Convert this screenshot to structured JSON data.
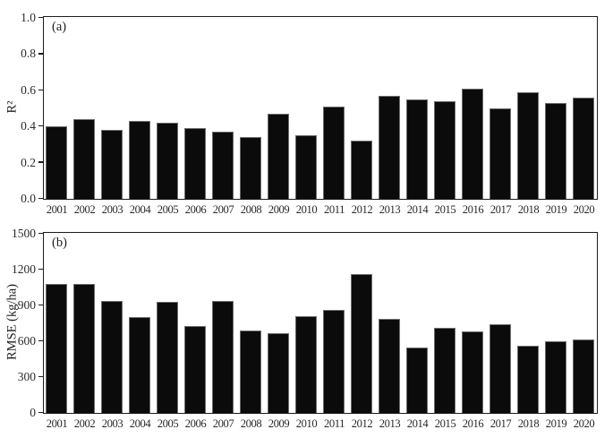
{
  "figure": {
    "background_color": "#ffffff",
    "bar_color": "#0b0b0b",
    "axis_color": "#1c1c1c"
  },
  "chart_data": [
    {
      "type": "bar",
      "panel_label": "(a)",
      "title": "",
      "xlabel": "",
      "ylabel": "R²",
      "legend": "none",
      "grid": false,
      "categories": [
        "2001",
        "2002",
        "2003",
        "2004",
        "2005",
        "2006",
        "2007",
        "2008",
        "2009",
        "2010",
        "2011",
        "2012",
        "2013",
        "2014",
        "2015",
        "2016",
        "2017",
        "2018",
        "2019",
        "2020"
      ],
      "values": [
        0.4,
        0.44,
        0.38,
        0.43,
        0.42,
        0.39,
        0.37,
        0.34,
        0.47,
        0.35,
        0.51,
        0.32,
        0.57,
        0.55,
        0.54,
        0.61,
        0.5,
        0.59,
        0.53,
        0.56
      ],
      "ylim": [
        0,
        1.0
      ],
      "yticks": [
        0.0,
        0.2,
        0.4,
        0.6,
        0.8,
        1.0
      ],
      "ytick_labels": [
        "0.0",
        "0.2",
        "0.4",
        "0.6",
        "0.8",
        "1.0"
      ]
    },
    {
      "type": "bar",
      "panel_label": "(b)",
      "title": "",
      "xlabel": "",
      "ylabel": "RMSE (kg/ha)",
      "legend": "none",
      "grid": false,
      "categories": [
        "2001",
        "2002",
        "2003",
        "2004",
        "2005",
        "2006",
        "2007",
        "2008",
        "2009",
        "2010",
        "2011",
        "2012",
        "2013",
        "2014",
        "2015",
        "2016",
        "2017",
        "2018",
        "2019",
        "2020"
      ],
      "values": [
        1080,
        1080,
        940,
        800,
        930,
        730,
        940,
        690,
        670,
        810,
        860,
        1160,
        790,
        545,
        710,
        680,
        745,
        565,
        600,
        615
      ],
      "ylim": [
        0,
        1500
      ],
      "yticks": [
        0,
        300,
        600,
        900,
        1200,
        1500
      ],
      "ytick_labels": [
        "0",
        "300",
        "600",
        "900",
        "1200",
        "1500"
      ]
    }
  ]
}
